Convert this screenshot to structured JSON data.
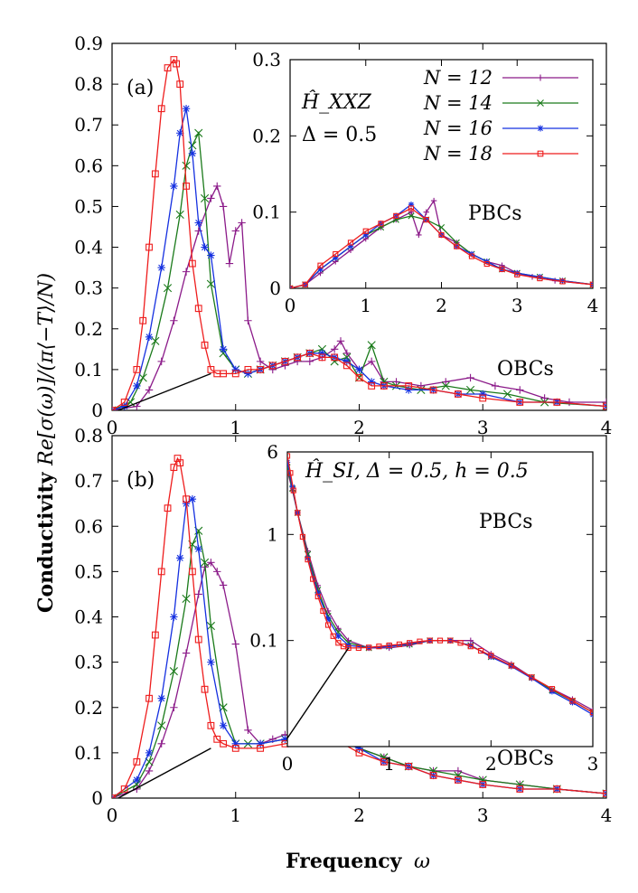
{
  "figure": {
    "ylabel_bold": "Conductivity",
    "ylabel_math": "Re[σ(ω)]/(π⟨−T⟩/N)",
    "xlabel_bold": "Frequency",
    "xlabel_math": "ω"
  },
  "colors": {
    "N12": "#8b1a89",
    "N14": "#1a7a1a",
    "N16": "#1530e0",
    "N18": "#ee1c1c"
  },
  "chart_data": [
    {
      "id": "a-main",
      "type": "line",
      "panel_label": "(a)",
      "annotation": "OBCs",
      "x_ticks": [
        "0",
        "1",
        "2",
        "3",
        "4"
      ],
      "y_ticks": [
        "0",
        "0.1",
        "0.2",
        "0.3",
        "0.4",
        "0.5",
        "0.6",
        "0.7",
        "0.8",
        "0.9"
      ],
      "xlim": [
        0,
        4
      ],
      "ylim": [
        0,
        0.9
      ],
      "series": [
        {
          "name": "N = 12",
          "marker": "plus",
          "x": [
            0,
            0.2,
            0.3,
            0.4,
            0.5,
            0.6,
            0.7,
            0.8,
            0.85,
            0.9,
            0.95,
            1.0,
            1.05,
            1.1,
            1.2,
            1.3,
            1.4,
            1.5,
            1.6,
            1.7,
            1.8,
            1.85,
            1.9,
            2.0,
            2.1,
            2.2,
            2.3,
            2.5,
            2.7,
            2.9,
            3.1,
            3.3,
            3.5,
            3.7,
            4.0
          ],
          "y": [
            0,
            0.01,
            0.05,
            0.12,
            0.22,
            0.34,
            0.44,
            0.52,
            0.55,
            0.5,
            0.36,
            0.44,
            0.46,
            0.22,
            0.12,
            0.1,
            0.11,
            0.12,
            0.12,
            0.13,
            0.15,
            0.17,
            0.14,
            0.1,
            0.12,
            0.07,
            0.07,
            0.06,
            0.07,
            0.08,
            0.06,
            0.05,
            0.03,
            0.02,
            0.02
          ]
        },
        {
          "name": "N = 14",
          "marker": "cross",
          "x": [
            0,
            0.15,
            0.25,
            0.35,
            0.45,
            0.55,
            0.6,
            0.65,
            0.7,
            0.75,
            0.8,
            0.9,
            1.0,
            1.1,
            1.2,
            1.3,
            1.4,
            1.5,
            1.6,
            1.7,
            1.8,
            1.9,
            2.0,
            2.1,
            2.2,
            2.3,
            2.5,
            2.7,
            2.9,
            3.2,
            3.5,
            4.0
          ],
          "y": [
            0,
            0.02,
            0.08,
            0.17,
            0.3,
            0.48,
            0.6,
            0.65,
            0.68,
            0.52,
            0.31,
            0.14,
            0.1,
            0.09,
            0.1,
            0.11,
            0.12,
            0.13,
            0.14,
            0.15,
            0.12,
            0.13,
            0.08,
            0.16,
            0.07,
            0.06,
            0.05,
            0.06,
            0.05,
            0.04,
            0.02,
            0.01
          ]
        },
        {
          "name": "N = 16",
          "marker": "star",
          "x": [
            0,
            0.1,
            0.2,
            0.3,
            0.4,
            0.5,
            0.55,
            0.6,
            0.65,
            0.7,
            0.75,
            0.8,
            0.9,
            1.0,
            1.1,
            1.2,
            1.3,
            1.4,
            1.5,
            1.6,
            1.7,
            1.8,
            1.9,
            2.0,
            2.1,
            2.2,
            2.4,
            2.6,
            2.8,
            3.0,
            3.3,
            3.6,
            4.0
          ],
          "y": [
            0,
            0.01,
            0.06,
            0.18,
            0.35,
            0.55,
            0.68,
            0.74,
            0.63,
            0.46,
            0.4,
            0.38,
            0.15,
            0.1,
            0.09,
            0.1,
            0.11,
            0.12,
            0.13,
            0.14,
            0.14,
            0.13,
            0.12,
            0.1,
            0.07,
            0.06,
            0.05,
            0.05,
            0.04,
            0.04,
            0.02,
            0.02,
            0.01
          ]
        },
        {
          "name": "N = 18",
          "marker": "square",
          "x": [
            0,
            0.1,
            0.2,
            0.25,
            0.3,
            0.35,
            0.4,
            0.45,
            0.5,
            0.52,
            0.55,
            0.6,
            0.65,
            0.7,
            0.75,
            0.8,
            0.85,
            0.9,
            1.0,
            1.1,
            1.2,
            1.3,
            1.4,
            1.5,
            1.6,
            1.7,
            1.8,
            1.9,
            2.0,
            2.1,
            2.2,
            2.4,
            2.6,
            2.8,
            3.0,
            3.3,
            3.6,
            4.0
          ],
          "y": [
            0,
            0.02,
            0.1,
            0.22,
            0.4,
            0.58,
            0.74,
            0.84,
            0.86,
            0.85,
            0.8,
            0.55,
            0.36,
            0.25,
            0.16,
            0.1,
            0.09,
            0.09,
            0.09,
            0.1,
            0.1,
            0.11,
            0.12,
            0.13,
            0.14,
            0.13,
            0.13,
            0.11,
            0.08,
            0.06,
            0.06,
            0.06,
            0.05,
            0.04,
            0.03,
            0.02,
            0.02,
            0.01
          ]
        }
      ]
    },
    {
      "id": "a-inset",
      "type": "line",
      "annotation": "PBCs",
      "model_label": "Ĥ_XXZ",
      "param_label": "Δ = 0.5",
      "x_ticks": [
        "0",
        "1",
        "2",
        "3",
        "4"
      ],
      "y_ticks": [
        "0",
        "0.1",
        "0.2",
        "0.3"
      ],
      "xlim": [
        0,
        4
      ],
      "ylim": [
        0,
        0.3
      ],
      "legend": [
        "N = 12",
        "N = 14",
        "N = 16",
        "N = 18"
      ],
      "series": [
        {
          "name": "N = 12",
          "marker": "plus",
          "x": [
            0,
            0.2,
            0.4,
            0.6,
            0.8,
            1.0,
            1.2,
            1.4,
            1.6,
            1.7,
            1.8,
            1.9,
            2.0,
            2.2,
            2.4,
            2.6,
            2.8,
            3.0,
            3.2,
            3.5,
            4.0
          ],
          "y": [
            0,
            0.005,
            0.02,
            0.035,
            0.05,
            0.065,
            0.08,
            0.09,
            0.1,
            0.07,
            0.1,
            0.115,
            0.07,
            0.06,
            0.045,
            0.035,
            0.03,
            0.02,
            0.015,
            0.01,
            0.005
          ]
        },
        {
          "name": "N = 14",
          "marker": "cross",
          "x": [
            0,
            0.2,
            0.4,
            0.6,
            0.8,
            1.0,
            1.2,
            1.4,
            1.6,
            1.8,
            2.0,
            2.2,
            2.4,
            2.6,
            2.8,
            3.0,
            3.3,
            3.6,
            4.0
          ],
          "y": [
            0,
            0.005,
            0.025,
            0.04,
            0.055,
            0.07,
            0.08,
            0.09,
            0.095,
            0.09,
            0.08,
            0.06,
            0.045,
            0.035,
            0.025,
            0.02,
            0.015,
            0.01,
            0.005
          ]
        },
        {
          "name": "N = 16",
          "marker": "star",
          "x": [
            0,
            0.2,
            0.4,
            0.6,
            0.8,
            1.0,
            1.2,
            1.4,
            1.6,
            1.8,
            2.0,
            2.2,
            2.4,
            2.6,
            2.8,
            3.0,
            3.3,
            3.6,
            4.0
          ],
          "y": [
            0,
            0.005,
            0.025,
            0.04,
            0.055,
            0.07,
            0.085,
            0.095,
            0.11,
            0.09,
            0.07,
            0.055,
            0.045,
            0.035,
            0.025,
            0.02,
            0.015,
            0.01,
            0.005
          ]
        },
        {
          "name": "N = 18",
          "marker": "square",
          "x": [
            0,
            0.2,
            0.4,
            0.6,
            0.8,
            1.0,
            1.2,
            1.4,
            1.6,
            1.8,
            2.0,
            2.2,
            2.4,
            2.6,
            2.8,
            3.0,
            3.3,
            3.6,
            4.0
          ],
          "y": [
            0,
            0.005,
            0.03,
            0.045,
            0.06,
            0.075,
            0.085,
            0.095,
            0.105,
            0.09,
            0.07,
            0.055,
            0.042,
            0.032,
            0.025,
            0.018,
            0.013,
            0.009,
            0.005
          ]
        }
      ]
    },
    {
      "id": "b-main",
      "type": "line",
      "panel_label": "(b)",
      "annotation": "OBCs",
      "x_ticks": [
        "0",
        "1",
        "2",
        "3",
        "4"
      ],
      "y_ticks": [
        "0",
        "0.1",
        "0.2",
        "0.3",
        "0.4",
        "0.5",
        "0.6",
        "0.7",
        "0.8"
      ],
      "xlim": [
        0,
        4
      ],
      "ylim": [
        0,
        0.8
      ],
      "series": [
        {
          "name": "N = 12",
          "marker": "plus",
          "x": [
            0,
            0.2,
            0.3,
            0.4,
            0.5,
            0.6,
            0.7,
            0.75,
            0.8,
            0.85,
            0.9,
            1.0,
            1.1,
            1.2,
            1.3,
            1.4,
            1.5,
            1.6,
            1.7,
            1.8,
            1.9,
            2.0,
            2.2,
            2.4,
            2.6,
            2.8,
            3.0,
            3.3,
            3.6,
            4.0
          ],
          "y": [
            0,
            0.02,
            0.06,
            0.12,
            0.2,
            0.32,
            0.45,
            0.51,
            0.52,
            0.5,
            0.47,
            0.34,
            0.15,
            0.12,
            0.13,
            0.14,
            0.13,
            0.14,
            0.13,
            0.13,
            0.15,
            0.11,
            0.09,
            0.07,
            0.06,
            0.06,
            0.04,
            0.03,
            0.02,
            0.01
          ]
        },
        {
          "name": "N = 14",
          "marker": "cross",
          "x": [
            0,
            0.2,
            0.3,
            0.4,
            0.5,
            0.6,
            0.65,
            0.7,
            0.75,
            0.8,
            0.9,
            1.0,
            1.1,
            1.2,
            1.4,
            1.6,
            1.8,
            2.0,
            2.2,
            2.4,
            2.6,
            2.8,
            3.0,
            3.3,
            3.6,
            4.0
          ],
          "y": [
            0,
            0.03,
            0.08,
            0.16,
            0.28,
            0.44,
            0.56,
            0.59,
            0.52,
            0.38,
            0.2,
            0.12,
            0.12,
            0.12,
            0.13,
            0.13,
            0.14,
            0.11,
            0.09,
            0.07,
            0.06,
            0.05,
            0.04,
            0.03,
            0.02,
            0.01
          ]
        },
        {
          "name": "N = 16",
          "marker": "star",
          "x": [
            0,
            0.2,
            0.3,
            0.4,
            0.5,
            0.55,
            0.6,
            0.65,
            0.7,
            0.8,
            0.9,
            1.0,
            1.2,
            1.4,
            1.6,
            1.8,
            2.0,
            2.2,
            2.4,
            2.6,
            2.8,
            3.0,
            3.3,
            3.6,
            4.0
          ],
          "y": [
            0,
            0.04,
            0.1,
            0.22,
            0.4,
            0.53,
            0.65,
            0.66,
            0.55,
            0.3,
            0.16,
            0.12,
            0.12,
            0.13,
            0.13,
            0.13,
            0.11,
            0.08,
            0.07,
            0.05,
            0.04,
            0.03,
            0.02,
            0.02,
            0.01
          ]
        },
        {
          "name": "N = 18",
          "marker": "square",
          "x": [
            0,
            0.1,
            0.2,
            0.3,
            0.35,
            0.4,
            0.45,
            0.5,
            0.53,
            0.55,
            0.6,
            0.65,
            0.7,
            0.75,
            0.8,
            0.85,
            0.9,
            1.0,
            1.2,
            1.4,
            1.6,
            1.8,
            2.0,
            2.2,
            2.4,
            2.6,
            2.8,
            3.0,
            3.3,
            3.6,
            4.0
          ],
          "y": [
            0,
            0.02,
            0.08,
            0.22,
            0.36,
            0.5,
            0.64,
            0.73,
            0.75,
            0.74,
            0.66,
            0.5,
            0.35,
            0.24,
            0.16,
            0.13,
            0.12,
            0.11,
            0.11,
            0.12,
            0.13,
            0.13,
            0.1,
            0.08,
            0.07,
            0.05,
            0.04,
            0.03,
            0.02,
            0.02,
            0.01
          ]
        }
      ]
    },
    {
      "id": "b-inset",
      "type": "line",
      "annotation": "PBCs",
      "model_label": "Ĥ_SI, Δ = 0.5, h = 0.5",
      "x_ticks": [
        "0",
        "1",
        "2",
        "3"
      ],
      "y_ticks": [
        "0.1",
        "1",
        "6"
      ],
      "yscale": "log",
      "xlim": [
        0,
        3
      ],
      "ylim": [
        0.01,
        6
      ],
      "series": [
        {
          "name": "N = 12",
          "marker": "plus",
          "x": [
            0,
            0.05,
            0.1,
            0.2,
            0.3,
            0.4,
            0.5,
            0.6,
            0.8,
            1.0,
            1.2,
            1.4,
            1.6,
            1.8,
            2.0,
            2.2,
            2.4,
            2.6,
            2.8,
            3.0
          ],
          "y": [
            4,
            2.6,
            1.6,
            0.7,
            0.33,
            0.19,
            0.13,
            0.1,
            0.085,
            0.085,
            0.09,
            0.1,
            0.1,
            0.1,
            0.075,
            0.06,
            0.045,
            0.035,
            0.028,
            0.022
          ]
        },
        {
          "name": "N = 14",
          "marker": "cross",
          "x": [
            0,
            0.05,
            0.1,
            0.2,
            0.3,
            0.4,
            0.5,
            0.6,
            0.8,
            1.0,
            1.2,
            1.4,
            1.6,
            1.8,
            2.0,
            2.2,
            2.4,
            2.6,
            2.8,
            3.0
          ],
          "y": [
            4.3,
            2.7,
            1.6,
            0.65,
            0.3,
            0.17,
            0.12,
            0.095,
            0.085,
            0.088,
            0.092,
            0.1,
            0.1,
            0.09,
            0.07,
            0.058,
            0.045,
            0.034,
            0.027,
            0.021
          ]
        },
        {
          "name": "N = 16",
          "marker": "star",
          "x": [
            0,
            0.05,
            0.1,
            0.2,
            0.3,
            0.4,
            0.5,
            0.6,
            0.8,
            1.0,
            1.2,
            1.4,
            1.6,
            1.8,
            2.0,
            2.2,
            2.4,
            2.6,
            2.8,
            3.0
          ],
          "y": [
            4.8,
            2.8,
            1.6,
            0.6,
            0.28,
            0.16,
            0.11,
            0.09,
            0.085,
            0.088,
            0.093,
            0.1,
            0.1,
            0.09,
            0.07,
            0.057,
            0.044,
            0.033,
            0.026,
            0.02
          ]
        },
        {
          "name": "N = 18",
          "marker": "square",
          "x": [
            0,
            0.03,
            0.06,
            0.1,
            0.15,
            0.2,
            0.25,
            0.3,
            0.35,
            0.4,
            0.45,
            0.5,
            0.55,
            0.6,
            0.7,
            0.8,
            0.9,
            1.0,
            1.1,
            1.2,
            1.3,
            1.4,
            1.5,
            1.6,
            1.7,
            1.8,
            1.9,
            2.0,
            2.2,
            2.4,
            2.6,
            2.8,
            3.0
          ],
          "y": [
            5.5,
            3.8,
            2.6,
            1.6,
            0.95,
            0.58,
            0.38,
            0.26,
            0.19,
            0.14,
            0.11,
            0.095,
            0.088,
            0.085,
            0.085,
            0.086,
            0.088,
            0.09,
            0.092,
            0.095,
            0.098,
            0.1,
            0.1,
            0.1,
            0.095,
            0.088,
            0.08,
            0.072,
            0.058,
            0.045,
            0.035,
            0.027,
            0.021
          ]
        }
      ]
    }
  ]
}
